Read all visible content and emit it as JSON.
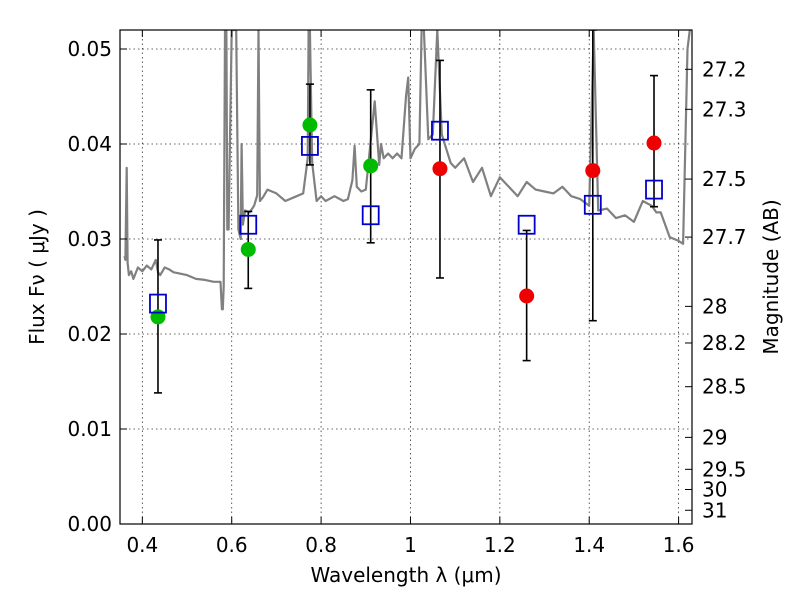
{
  "chart_data": {
    "type": "scatter",
    "xlabel": "Wavelength  λ (μm)",
    "ylabel_left": "Flux  Fν  ( μJy )",
    "ylabel_right": "Magnitude (AB)",
    "xlim": [
      0.35,
      1.63
    ],
    "ylim": [
      0.0,
      0.052
    ],
    "grid": true,
    "x_ticks": [
      0.4,
      0.6,
      0.8,
      1.0,
      1.2,
      1.4,
      1.6
    ],
    "x_tick_labels": [
      "0.4",
      "0.6",
      "0.8",
      "1",
      "1.2",
      "1.4",
      "1.6"
    ],
    "y_ticks": [
      0.0,
      0.01,
      0.02,
      0.03,
      0.04,
      0.05
    ],
    "y_tick_labels": [
      "0.00",
      "0.01",
      "0.02",
      "0.03",
      "0.04",
      "0.05"
    ],
    "right_ticks": [
      27.2,
      27.3,
      27.5,
      27.7,
      28,
      28.2,
      28.5,
      29,
      29.5,
      30,
      31
    ],
    "right_tick_labels": [
      "27.2",
      "27.3",
      "27.5",
      "27.7",
      "28",
      "28.2",
      "28.5",
      "29",
      "29.5",
      "30",
      "31"
    ],
    "series": [
      {
        "marker": "circle",
        "color": "#00bb00",
        "x": [
          0.435,
          0.637,
          0.775,
          0.911
        ],
        "y": [
          0.0218,
          0.0289,
          0.042,
          0.0377
        ]
      },
      {
        "marker": "circle",
        "color": "#ee0000",
        "x": [
          1.066,
          1.26,
          1.408,
          1.545
        ],
        "y": [
          0.0374,
          0.024,
          0.0372,
          0.0401
        ]
      },
      {
        "marker": "open-square",
        "color": "#0000cc",
        "x": [
          0.435,
          0.637,
          0.775,
          0.911,
          1.066,
          1.26,
          1.408,
          1.545
        ],
        "y": [
          0.0232,
          0.0315,
          0.0398,
          0.0325,
          0.0414,
          0.0315,
          0.0336,
          0.0352
        ],
        "err_low": [
          0.0138,
          0.0248,
          0.0378,
          0.0296,
          0.0259,
          0.0172,
          0.0214,
          0.0334
        ],
        "err_high": [
          0.0299,
          0.0329,
          0.0463,
          0.0457,
          0.0488,
          0.0309,
          0.052,
          0.0472
        ]
      }
    ],
    "spectrum": {
      "color": "#808080",
      "x": [
        0.36,
        0.362,
        0.365,
        0.367,
        0.37,
        0.375,
        0.38,
        0.39,
        0.4,
        0.41,
        0.42,
        0.43,
        0.435,
        0.44,
        0.45,
        0.46,
        0.47,
        0.48,
        0.5,
        0.52,
        0.54,
        0.56,
        0.575,
        0.578,
        0.58,
        0.582,
        0.585,
        0.588,
        0.59,
        0.593,
        0.6,
        0.61,
        0.615,
        0.62,
        0.622,
        0.625,
        0.63,
        0.64,
        0.65,
        0.657,
        0.66,
        0.663,
        0.67,
        0.68,
        0.7,
        0.72,
        0.74,
        0.76,
        0.77,
        0.772,
        0.775,
        0.78,
        0.79,
        0.8,
        0.81,
        0.83,
        0.85,
        0.86,
        0.87,
        0.875,
        0.88,
        0.89,
        0.9,
        0.92,
        0.93,
        0.934,
        0.94,
        0.95,
        0.96,
        0.97,
        0.98,
        0.99,
        0.995,
        1.0,
        1.01,
        1.02,
        1.025,
        1.03,
        1.04,
        1.05,
        1.06,
        1.07,
        1.08,
        1.09,
        1.1,
        1.12,
        1.14,
        1.16,
        1.18,
        1.2,
        1.22,
        1.24,
        1.26,
        1.28,
        1.3,
        1.32,
        1.34,
        1.36,
        1.38,
        1.4,
        1.41,
        1.42,
        1.44,
        1.46,
        1.48,
        1.5,
        1.52,
        1.54,
        1.55,
        1.56,
        1.58,
        1.6,
        1.61,
        1.62,
        1.625
      ],
      "y": [
        0.0282,
        0.0278,
        0.0375,
        0.0275,
        0.0262,
        0.0266,
        0.0258,
        0.027,
        0.0266,
        0.0272,
        0.0268,
        0.0278,
        0.0265,
        0.0262,
        0.027,
        0.0268,
        0.0265,
        0.0264,
        0.0262,
        0.0258,
        0.0257,
        0.0255,
        0.0255,
        0.0226,
        0.0226,
        0.025,
        0.052,
        0.052,
        0.031,
        0.031,
        0.052,
        0.052,
        0.031,
        0.03,
        0.04,
        0.0315,
        0.033,
        0.0328,
        0.0335,
        0.0346,
        0.052,
        0.034,
        0.0344,
        0.0352,
        0.0348,
        0.034,
        0.0344,
        0.0348,
        0.0385,
        0.052,
        0.052,
        0.038,
        0.034,
        0.0345,
        0.034,
        0.0345,
        0.034,
        0.0342,
        0.0362,
        0.0398,
        0.0355,
        0.035,
        0.0352,
        0.0445,
        0.0378,
        0.04,
        0.0385,
        0.039,
        0.0385,
        0.039,
        0.0385,
        0.045,
        0.047,
        0.0385,
        0.0395,
        0.04,
        0.052,
        0.052,
        0.0405,
        0.041,
        0.052,
        0.041,
        0.0395,
        0.038,
        0.0375,
        0.0385,
        0.036,
        0.0375,
        0.0345,
        0.0365,
        0.0355,
        0.0345,
        0.036,
        0.0352,
        0.035,
        0.0348,
        0.0355,
        0.0345,
        0.0342,
        0.0335,
        0.052,
        0.033,
        0.0332,
        0.0322,
        0.0325,
        0.0318,
        0.034,
        0.0335,
        0.0328,
        0.0328,
        0.0302,
        0.0298,
        0.0295,
        0.05,
        0.052
      ]
    }
  }
}
